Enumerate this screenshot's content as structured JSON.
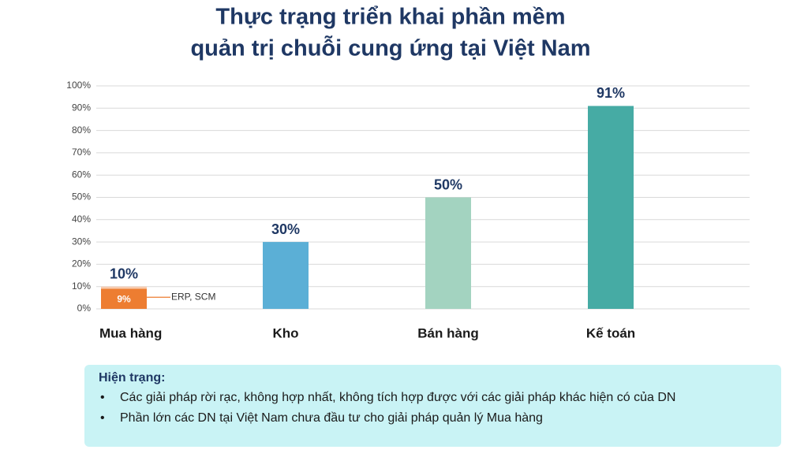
{
  "chart_data": {
    "type": "bar",
    "title": [
      "Thực trạng triển khai phần mềm",
      "quản trị chuỗi cung ứng tại Việt Nam"
    ],
    "categories": [
      "Mua hàng",
      "Kho",
      "Bán hàng",
      "Kế toán"
    ],
    "values": [
      10,
      30,
      50,
      91
    ],
    "value_labels": [
      "10%",
      "30%",
      "50%",
      "91%"
    ],
    "colors": [
      "#f8cbad",
      "#5bafd6",
      "#a3d3c0",
      "#46aba4"
    ],
    "inner_name": "ERP, SCM",
    "inner_values": [
      9,
      null,
      null,
      null
    ],
    "inner_value_labels": [
      "9%",
      null,
      null,
      null
    ],
    "inner_color": "#ed7d31",
    "ylim": [
      0,
      100
    ],
    "yticks": [
      {
        "value": 0,
        "label": "0%"
      },
      {
        "value": 10,
        "label": "10%"
      },
      {
        "value": 20,
        "label": "20%"
      },
      {
        "value": 30,
        "label": "30%"
      },
      {
        "value": 40,
        "label": "40%"
      },
      {
        "value": 50,
        "label": "50%"
      },
      {
        "value": 60,
        "label": "60%"
      },
      {
        "value": 70,
        "label": "70%"
      },
      {
        "value": 80,
        "label": "80%"
      },
      {
        "value": 90,
        "label": "90%"
      },
      {
        "value": 100,
        "label": "100%"
      }
    ],
    "grid": true
  },
  "note": {
    "title": "Hiện trạng:",
    "bullets": [
      "Các giải pháp rời rạc, không hợp nhất, không tích hợp được với các giải pháp khác hiện có của DN",
      "Phần lớn các DN tại Việt Nam chưa đầu tư cho giải pháp quản lý Mua hàng"
    ]
  }
}
